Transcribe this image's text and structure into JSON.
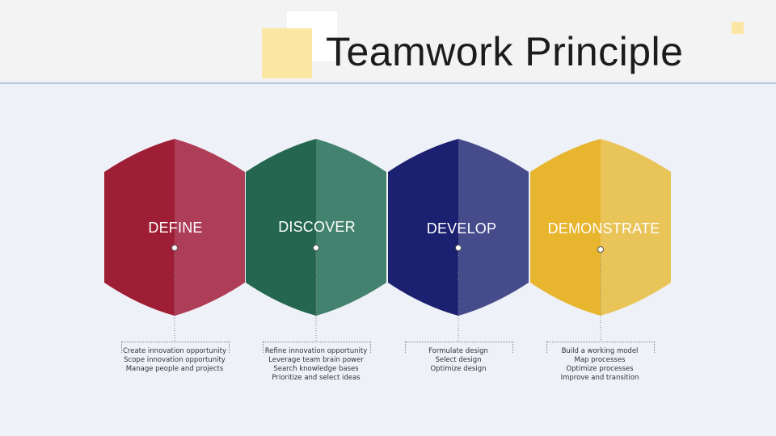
{
  "title": "Teamwork Principle",
  "colors": {
    "define": [
      "#9e1e35",
      "#ae3d57"
    ],
    "discover": [
      "#256650",
      "#43826e"
    ],
    "develop": [
      "#1c2070",
      "#464b8c"
    ],
    "demonstrate": [
      "#e8b52f",
      "#e9c458"
    ]
  },
  "steps": [
    {
      "label": "DEFINE",
      "items": [
        "Create innovation opportunity",
        "Scope innovation opportunity",
        "Manage people and projects"
      ]
    },
    {
      "label": "DISCOVER",
      "items": [
        "Refine innovation opportunity",
        "Leverage team brain power",
        "Search knowledge bases",
        "Prioritize and select ideas"
      ]
    },
    {
      "label": "DEVELOP",
      "items": [
        "Formulate design",
        "Select design",
        "Optimize design"
      ]
    },
    {
      "label": "DEMONSTRATE",
      "items": [
        "Build a working model",
        "Map processes",
        "Optimize processes",
        "Improve and transition"
      ]
    }
  ]
}
